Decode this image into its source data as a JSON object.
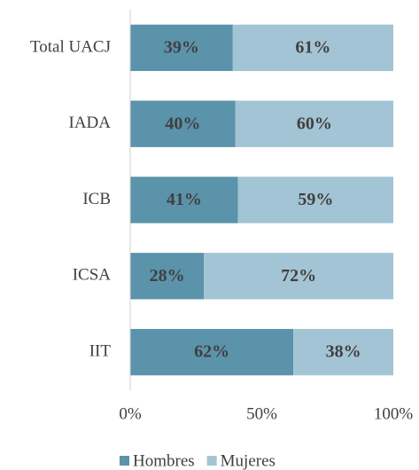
{
  "chart_data": {
    "type": "stacked_bar_horizontal",
    "categories": [
      "Total UACJ",
      "IADA",
      "ICB",
      "ICSA",
      "IIT"
    ],
    "series": [
      {
        "name": "Hombres",
        "color": "#5b93aa",
        "values": [
          39,
          40,
          41,
          28,
          62
        ],
        "value_labels": [
          "39%",
          "40%",
          "41%",
          "28%",
          "62%"
        ]
      },
      {
        "name": "Mujeres",
        "color": "#a3c4d4",
        "values": [
          61,
          60,
          59,
          72,
          38
        ],
        "value_labels": [
          "61%",
          "60%",
          "59%",
          "72%",
          "38%"
        ]
      }
    ],
    "xlim": [
      0,
      100
    ],
    "xticks": [
      {
        "value": 0,
        "label": "0%"
      },
      {
        "value": 50,
        "label": "50%"
      },
      {
        "value": 100,
        "label": "100%"
      }
    ],
    "legend": "bottom"
  }
}
